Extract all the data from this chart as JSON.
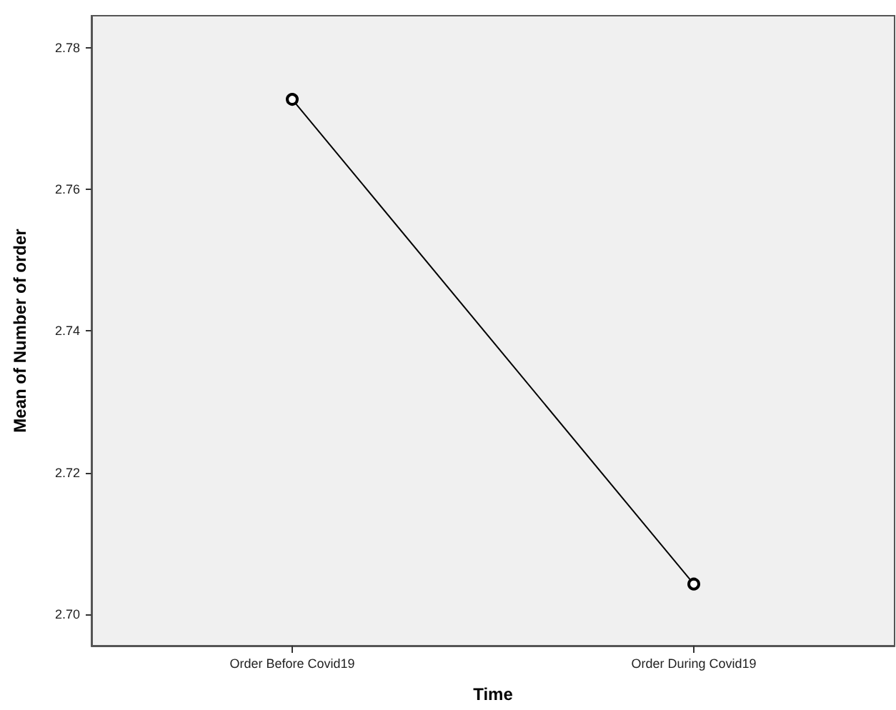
{
  "chart_data": {
    "type": "line",
    "xlabel": "Time",
    "ylabel": "Mean of Number of order",
    "categories": [
      "Order Before Covid19",
      "Order During Covid19"
    ],
    "series": [
      {
        "color": "#000000",
        "values": [
          2.7727,
          2.7043
        ]
      }
    ],
    "ylim": [
      2.6956,
      2.7845
    ],
    "yticks": [
      {
        "value": 2.7,
        "label": "2.70"
      },
      {
        "value": 2.72,
        "label": "2.72"
      },
      {
        "value": 2.74,
        "label": "2.74"
      },
      {
        "value": 2.76,
        "label": "2.76"
      },
      {
        "value": 2.78,
        "label": "2.78"
      }
    ],
    "grid": false,
    "marker": "circle",
    "line_style": "solid"
  }
}
